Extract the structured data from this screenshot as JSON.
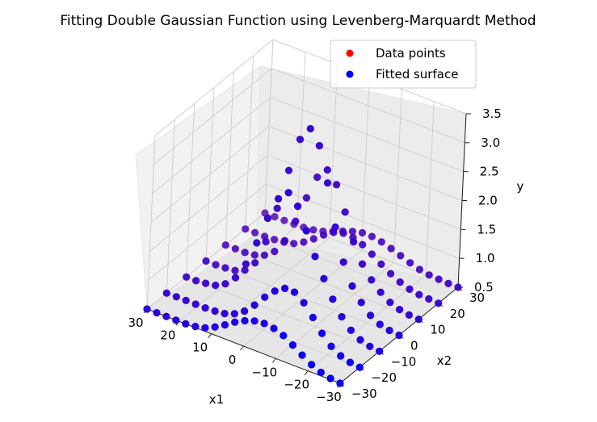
{
  "figure": {
    "title": "Fitting Double Gaussian Function using Levenberg-Marquardt Method"
  },
  "legend": {
    "placement": "top-right",
    "entries": [
      {
        "label": "Data points",
        "color": "#ff0000"
      },
      {
        "label": "Fitted surface",
        "color": "#0000ff"
      }
    ]
  },
  "chart_data": {
    "type": "scatter",
    "projection": "3d",
    "title": "Fitting Double Gaussian Function using Levenberg-Marquardt Method",
    "xlabel": "x1",
    "ylabel": "x2",
    "zlabel": "y",
    "xlim": [
      -30,
      30
    ],
    "ylim": [
      -30,
      30
    ],
    "zlim": [
      0.5,
      3.5
    ],
    "x_ticks": [
      -30,
      -20,
      -10,
      0,
      10,
      20,
      30
    ],
    "y_ticks": [
      -30,
      -20,
      -10,
      0,
      10,
      20,
      30
    ],
    "z_ticks": [
      0.5,
      1.0,
      1.5,
      2.0,
      2.5,
      3.0,
      3.5
    ],
    "x_tick_labels": [
      "−30",
      "−20",
      "−10",
      "0",
      "10",
      "20",
      "30"
    ],
    "y_tick_labels": [
      "−30",
      "−20",
      "−10",
      "0",
      "10",
      "20",
      "30"
    ],
    "z_tick_labels": [
      "0.5",
      "1.0",
      "1.5",
      "2.0",
      "2.5",
      "3.0",
      "3.5"
    ],
    "grid": true,
    "legend_position": "upper right",
    "series": [
      {
        "name": "Data points",
        "color": "#ff0000",
        "grid_x1": [
          -30,
          -27,
          -24,
          -21,
          -18,
          -15,
          -12,
          -9,
          -6,
          -3,
          0,
          3,
          6,
          9,
          12,
          15,
          18,
          21,
          24,
          27,
          30
        ],
        "grid_x2": [
          -30,
          -20,
          -10,
          0,
          10,
          20,
          30
        ],
        "y_rows": [
          [
            0.5,
            0.52,
            0.56,
            0.63,
            0.73,
            0.84,
            0.94,
            1.0,
            1.02,
            1.0,
            0.94,
            0.85,
            0.74,
            0.64,
            0.56,
            0.52,
            0.5,
            0.5,
            0.5,
            0.5,
            0.5
          ],
          [
            0.5,
            0.52,
            0.57,
            0.67,
            0.83,
            1.04,
            1.23,
            1.35,
            1.35,
            1.24,
            1.07,
            0.87,
            0.7,
            0.59,
            0.53,
            0.51,
            0.5,
            0.5,
            0.5,
            0.5,
            0.5
          ],
          [
            0.5,
            0.52,
            0.57,
            0.67,
            0.84,
            1.08,
            1.37,
            1.69,
            2.07,
            2.43,
            2.6,
            2.43,
            2.03,
            1.54,
            1.11,
            0.81,
            0.64,
            0.55,
            0.52,
            0.5,
            0.5
          ],
          [
            0.5,
            0.52,
            0.56,
            0.65,
            0.81,
            1.03,
            1.38,
            1.92,
            2.62,
            3.2,
            3.43,
            3.18,
            2.58,
            1.86,
            1.22,
            0.79,
            0.6,
            0.53,
            0.51,
            0.5,
            0.5
          ],
          [
            0.5,
            0.51,
            0.54,
            0.6,
            0.71,
            0.86,
            1.07,
            1.39,
            1.84,
            2.25,
            2.44,
            2.25,
            1.83,
            1.36,
            0.96,
            0.71,
            0.58,
            0.52,
            0.5,
            0.5,
            0.5
          ],
          [
            0.5,
            0.51,
            0.52,
            0.55,
            0.61,
            0.69,
            0.79,
            0.9,
            1.0,
            1.06,
            1.07,
            1.02,
            0.91,
            0.78,
            0.66,
            0.57,
            0.53,
            0.51,
            0.5,
            0.5,
            0.5
          ],
          [
            0.5,
            0.5,
            0.51,
            0.52,
            0.55,
            0.6,
            0.66,
            0.72,
            0.77,
            0.8,
            0.8,
            0.76,
            0.7,
            0.63,
            0.57,
            0.53,
            0.51,
            0.5,
            0.5,
            0.5,
            0.5
          ]
        ]
      },
      {
        "name": "Fitted surface",
        "color": "#0000ff",
        "grid_x1": [
          -30,
          -27,
          -24,
          -21,
          -18,
          -15,
          -12,
          -9,
          -6,
          -3,
          0,
          3,
          6,
          9,
          12,
          15,
          18,
          21,
          24,
          27,
          30
        ],
        "grid_x2": [
          -30,
          -20,
          -10,
          0,
          10,
          20,
          30
        ],
        "y_rows": [
          [
            0.5,
            0.52,
            0.56,
            0.63,
            0.73,
            0.84,
            0.94,
            1.0,
            1.02,
            1.0,
            0.94,
            0.85,
            0.74,
            0.64,
            0.56,
            0.52,
            0.5,
            0.5,
            0.5,
            0.5,
            0.5
          ],
          [
            0.5,
            0.52,
            0.57,
            0.67,
            0.83,
            1.04,
            1.23,
            1.35,
            1.35,
            1.24,
            1.07,
            0.87,
            0.7,
            0.59,
            0.53,
            0.51,
            0.5,
            0.5,
            0.5,
            0.5,
            0.5
          ],
          [
            0.5,
            0.52,
            0.57,
            0.67,
            0.84,
            1.08,
            1.37,
            1.69,
            2.07,
            2.43,
            2.6,
            2.43,
            2.03,
            1.54,
            1.11,
            0.81,
            0.64,
            0.55,
            0.52,
            0.5,
            0.5
          ],
          [
            0.5,
            0.52,
            0.56,
            0.65,
            0.81,
            1.03,
            1.38,
            1.92,
            2.62,
            3.2,
            3.43,
            3.18,
            2.58,
            1.86,
            1.22,
            0.79,
            0.6,
            0.53,
            0.51,
            0.5,
            0.5
          ],
          [
            0.5,
            0.51,
            0.54,
            0.6,
            0.71,
            0.86,
            1.07,
            1.39,
            1.84,
            2.25,
            2.44,
            2.25,
            1.83,
            1.36,
            0.96,
            0.71,
            0.58,
            0.52,
            0.5,
            0.5,
            0.5
          ],
          [
            0.5,
            0.51,
            0.52,
            0.55,
            0.61,
            0.69,
            0.79,
            0.9,
            1.0,
            1.06,
            1.07,
            1.02,
            0.91,
            0.78,
            0.66,
            0.57,
            0.53,
            0.51,
            0.5,
            0.5,
            0.5
          ],
          [
            0.5,
            0.5,
            0.51,
            0.52,
            0.55,
            0.6,
            0.66,
            0.72,
            0.77,
            0.8,
            0.8,
            0.76,
            0.7,
            0.63,
            0.57,
            0.53,
            0.51,
            0.5,
            0.5,
            0.5,
            0.5
          ]
        ]
      }
    ]
  }
}
